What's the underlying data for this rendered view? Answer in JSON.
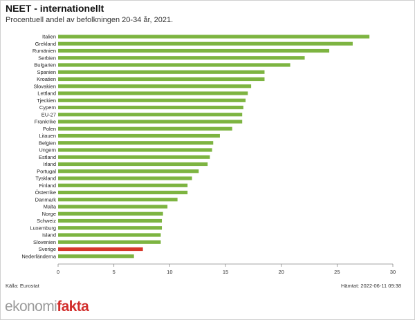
{
  "title": "NEET - internationellt",
  "subtitle": "Procentuell andel av befolkningen 20-34 år, 2021.",
  "source": "Källa: Eurostat",
  "fetched": "Hämtat: 2022-06-11 09:38",
  "logo": {
    "part1": "ekonomi",
    "part2": "fakta"
  },
  "colors": {
    "bar": "#7db441",
    "highlight": "#d7372a"
  },
  "chart_data": {
    "type": "bar",
    "orientation": "horizontal",
    "xlim": [
      0,
      30
    ],
    "xticks": [
      0,
      5,
      10,
      15,
      20,
      25,
      30
    ],
    "grid": false,
    "highlight": "Sverige",
    "categories": [
      "Italien",
      "Grekland",
      "Rumänien",
      "Serbien",
      "Bulgarien",
      "Spanien",
      "Kroatien",
      "Slovakien",
      "Lettland",
      "Tjeckien",
      "Cypern",
      "EU-27",
      "Frankrike",
      "Polen",
      "Litauen",
      "Belgien",
      "Ungern",
      "Estland",
      "Irland",
      "Portugal",
      "Tyskland",
      "Finland",
      "Österrike",
      "Danmark",
      "Malta",
      "Norge",
      "Schweiz",
      "Luxemburg",
      "Island",
      "Slovenien",
      "Sverige",
      "Nederländerna"
    ],
    "values": [
      27.9,
      26.4,
      24.3,
      22.1,
      20.8,
      18.5,
      18.5,
      17.3,
      17.0,
      16.8,
      16.6,
      16.5,
      16.5,
      15.6,
      14.5,
      13.9,
      13.8,
      13.6,
      13.4,
      12.6,
      12.0,
      11.6,
      11.6,
      10.7,
      9.8,
      9.4,
      9.3,
      9.3,
      9.2,
      9.2,
      7.6,
      6.8
    ]
  }
}
